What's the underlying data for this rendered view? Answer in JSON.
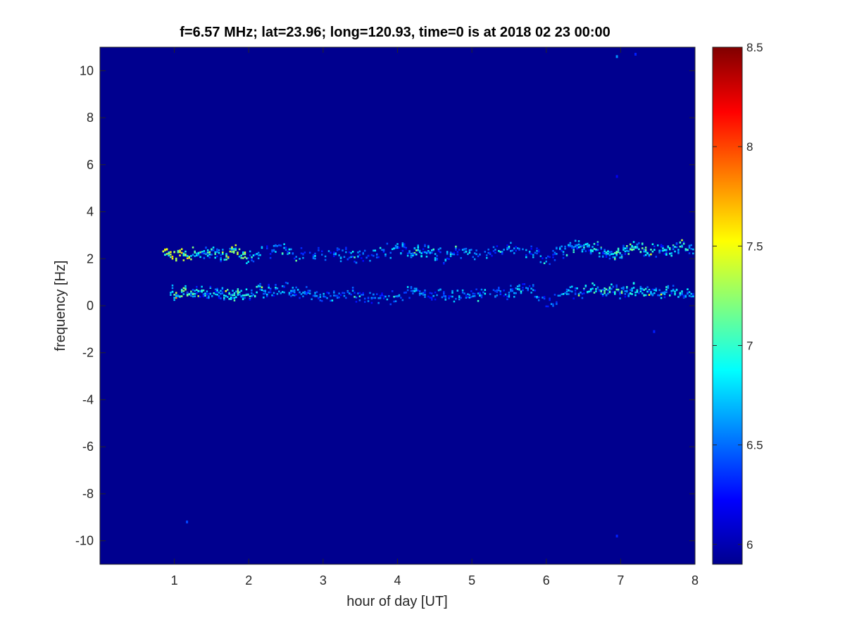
{
  "chart_data": {
    "type": "heatmap",
    "title": "f=6.57 MHz;  lat=23.96; long=120.93, time=0 is at 2018 02 23 00:00",
    "xlabel": "hour of day [UT]",
    "ylabel": "frequency [Hz]",
    "xlim": [
      0,
      8
    ],
    "ylim": [
      -11,
      11
    ],
    "xticks": [
      1,
      2,
      3,
      4,
      5,
      6,
      7,
      8
    ],
    "xtick_labels": [
      "1",
      "2",
      "3",
      "4",
      "5",
      "6",
      "7",
      "8"
    ],
    "yticks": [
      -10,
      -8,
      -6,
      -4,
      -2,
      0,
      2,
      4,
      6,
      8,
      10
    ],
    "ytick_labels": [
      "-10",
      "-8",
      "-6",
      "-4",
      "-2",
      "0",
      "2",
      "4",
      "6",
      "8",
      "10"
    ],
    "background_value": 5.9,
    "colorbar": {
      "colormap": "jet",
      "range": [
        5.9,
        8.5
      ],
      "ticks": [
        6,
        6.5,
        7,
        7.5,
        8,
        8.5
      ],
      "tick_labels": [
        "6",
        "6.5",
        "7",
        "7.5",
        "8",
        "8.5"
      ]
    },
    "series": [
      {
        "band_center_hz": 2.1,
        "x_start": 0.85,
        "x_end": 8,
        "trace": [
          {
            "x": 0.85,
            "y": 2.2,
            "v": 7.6
          },
          {
            "x": 1.0,
            "y": 2.2,
            "v": 7.8
          },
          {
            "x": 1.2,
            "y": 2.15,
            "v": 7.5
          },
          {
            "x": 1.4,
            "y": 2.2,
            "v": 7.1
          },
          {
            "x": 1.6,
            "y": 2.2,
            "v": 7.0
          },
          {
            "x": 1.8,
            "y": 2.3,
            "v": 7.6
          },
          {
            "x": 1.95,
            "y": 2.0,
            "v": 7.2
          },
          {
            "x": 2.2,
            "y": 2.3,
            "v": 6.8
          },
          {
            "x": 2.5,
            "y": 2.4,
            "v": 6.9
          },
          {
            "x": 2.8,
            "y": 2.1,
            "v": 6.6
          },
          {
            "x": 3.1,
            "y": 2.3,
            "v": 6.7
          },
          {
            "x": 3.4,
            "y": 2.1,
            "v": 6.8
          },
          {
            "x": 3.7,
            "y": 2.2,
            "v": 6.6
          },
          {
            "x": 4.0,
            "y": 2.4,
            "v": 6.9
          },
          {
            "x": 4.3,
            "y": 2.3,
            "v": 7.0
          },
          {
            "x": 4.6,
            "y": 2.1,
            "v": 6.7
          },
          {
            "x": 4.9,
            "y": 2.3,
            "v": 6.8
          },
          {
            "x": 5.2,
            "y": 2.2,
            "v": 6.6
          },
          {
            "x": 5.5,
            "y": 2.4,
            "v": 6.7
          },
          {
            "x": 5.8,
            "y": 2.3,
            "v": 6.8
          },
          {
            "x": 6.0,
            "y": 1.9,
            "v": 6.7
          },
          {
            "x": 6.3,
            "y": 2.4,
            "v": 6.9
          },
          {
            "x": 6.6,
            "y": 2.5,
            "v": 7.1
          },
          {
            "x": 6.9,
            "y": 2.2,
            "v": 7.0
          },
          {
            "x": 7.2,
            "y": 2.5,
            "v": 7.4
          },
          {
            "x": 7.5,
            "y": 2.3,
            "v": 7.0
          },
          {
            "x": 7.8,
            "y": 2.5,
            "v": 7.2
          },
          {
            "x": 8.0,
            "y": 2.3,
            "v": 6.9
          }
        ]
      },
      {
        "band_center_hz": 0.5,
        "x_start": 0.95,
        "x_end": 8,
        "trace": [
          {
            "x": 0.95,
            "y": 0.6,
            "v": 7.5
          },
          {
            "x": 1.1,
            "y": 0.5,
            "v": 7.4
          },
          {
            "x": 1.3,
            "y": 0.5,
            "v": 7.1
          },
          {
            "x": 1.6,
            "y": 0.5,
            "v": 7.0
          },
          {
            "x": 1.9,
            "y": 0.5,
            "v": 7.3
          },
          {
            "x": 2.2,
            "y": 0.6,
            "v": 6.9
          },
          {
            "x": 2.5,
            "y": 0.7,
            "v": 6.8
          },
          {
            "x": 2.8,
            "y": 0.5,
            "v": 6.7
          },
          {
            "x": 3.1,
            "y": 0.4,
            "v": 6.6
          },
          {
            "x": 3.4,
            "y": 0.5,
            "v": 6.7
          },
          {
            "x": 3.7,
            "y": 0.3,
            "v": 6.6
          },
          {
            "x": 4.0,
            "y": 0.4,
            "v": 6.9
          },
          {
            "x": 4.3,
            "y": 0.6,
            "v": 6.8
          },
          {
            "x": 4.6,
            "y": 0.4,
            "v": 6.7
          },
          {
            "x": 4.9,
            "y": 0.4,
            "v": 6.8
          },
          {
            "x": 5.2,
            "y": 0.5,
            "v": 6.6
          },
          {
            "x": 5.5,
            "y": 0.6,
            "v": 6.8
          },
          {
            "x": 5.8,
            "y": 0.7,
            "v": 6.7
          },
          {
            "x": 6.0,
            "y": 0.1,
            "v": 6.7
          },
          {
            "x": 6.3,
            "y": 0.5,
            "v": 6.8
          },
          {
            "x": 6.6,
            "y": 0.7,
            "v": 7.0
          },
          {
            "x": 6.9,
            "y": 0.6,
            "v": 7.2
          },
          {
            "x": 7.2,
            "y": 0.7,
            "v": 7.0
          },
          {
            "x": 7.5,
            "y": 0.5,
            "v": 7.1
          },
          {
            "x": 7.8,
            "y": 0.7,
            "v": 7.0
          },
          {
            "x": 8.0,
            "y": 0.5,
            "v": 6.9
          }
        ]
      }
    ],
    "isolated_points": [
      {
        "x": 6.95,
        "y": 10.6,
        "v": 6.6
      },
      {
        "x": 7.2,
        "y": 10.7,
        "v": 6.3
      },
      {
        "x": 7.45,
        "y": -1.1,
        "v": 6.3
      },
      {
        "x": 1.17,
        "y": -9.2,
        "v": 6.4
      },
      {
        "x": 6.95,
        "y": -9.8,
        "v": 6.3
      },
      {
        "x": 6.95,
        "y": 5.5,
        "v": 6.2
      }
    ]
  }
}
